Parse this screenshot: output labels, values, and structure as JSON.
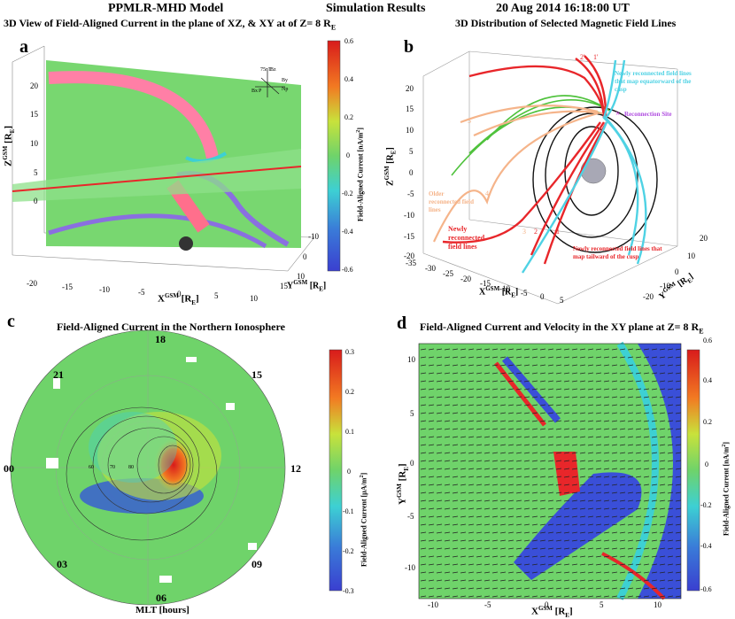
{
  "header": {
    "left": "PPMLR-MHD Model",
    "center": "Simulation Results",
    "right": "20 Aug 2014  16:18:00 UT"
  },
  "panel_a": {
    "letter": "a",
    "title": "3D View of Field-Aligned Current in the plane of XZ, & XY at of Z= 8 R",
    "title_sub": "E",
    "zlabel": "Z",
    "zlabel_sup": "GSM",
    "zlabel_unit": "[R",
    "zlabel_unit_sub": "E",
    "zlabel_close": "]",
    "xlabel": "X",
    "xlabel_sup": "GSM",
    "xlabel_unit": "[R",
    "xlabel_unit_sub": "E",
    "xlabel_close": "]",
    "ylabel": "Y",
    "ylabel_sup": "GSM",
    "ylabel_unit": "[R",
    "ylabel_unit_sub": "E",
    "ylabel_close": "]",
    "zticks": [
      "20",
      "15",
      "10",
      "5",
      "0"
    ],
    "xticks": [
      "-20",
      "-15",
      "-10",
      "-5",
      "0",
      "5",
      "10",
      "15"
    ],
    "yticks": [
      "-10",
      "0",
      "10"
    ],
    "cbar_label": "Field-Aligned Current [nA/m",
    "cbar_label_sup": "2",
    "cbar_label_close": "]",
    "cbar_ticks": [
      "0.6",
      "0.4",
      "0.2",
      "0",
      "-0.2",
      "-0.4",
      "-0.6"
    ],
    "inset": {
      "bz": "Bz",
      "by": "By",
      "bx": "Bx",
      "t": "75nT",
      "p": "P",
      "n": "Np"
    }
  },
  "panel_b": {
    "letter": "b",
    "title": "3D Distribution of Selected Magnetic Field Lines",
    "zlabel": "Z",
    "zlabel_sup": "GSM",
    "zlabel_unit": "[R",
    "zlabel_unit_sub": "E",
    "zlabel_close": "]",
    "xlabel": "X",
    "xlabel_sup": "GSM",
    "xlabel_unit": "[R",
    "xlabel_unit_sub": "E",
    "xlabel_close": "]",
    "ylabel": "Y",
    "ylabel_sup": "GSM",
    "ylabel_unit": "[R",
    "ylabel_unit_sub": "E",
    "ylabel_close": "]",
    "zticks": [
      "20",
      "15",
      "10",
      "5",
      "0",
      "-5",
      "-10",
      "-15",
      "-20"
    ],
    "xticks": [
      "-35",
      "-30",
      "-25",
      "-20",
      "-15",
      "-10",
      "-5",
      "0",
      "5"
    ],
    "yticks": [
      "20",
      "10",
      "0",
      "-10",
      "-20"
    ],
    "ann_cyan": "Newly reconnected field lines that map equatorward of the cusp",
    "ann_reconn": "Reconnection Site",
    "ann_older": "Older reconnected field lines",
    "ann_newly": "Newly reconnected field lines",
    "ann_tail": "Newly reconnected field lines that map tailward of the cusp",
    "nums": {
      "one": "1",
      "two": "2",
      "three": "3",
      "four": "4",
      "five": "5",
      "one_p": "1'",
      "two_p": "2'"
    }
  },
  "panel_c": {
    "letter": "c",
    "title": "Field-Aligned Current in the Northern Ionosphere",
    "mlt": {
      "t18": "18",
      "t21": "21",
      "t15": "15",
      "t00": "00",
      "t12": "12",
      "t03": "03",
      "t09": "09",
      "t06": "06"
    },
    "xlabel": "MLT [hours]",
    "lat_labels": [
      "60",
      "70",
      "80"
    ],
    "cbar_label": "Field-Aligned Current [µA/m",
    "cbar_label_sup": "2",
    "cbar_label_close": "]",
    "cbar_ticks": [
      "0.3",
      "0.2",
      "0.1",
      "0",
      "-0.1",
      "-0.2",
      "-0.3"
    ]
  },
  "panel_d": {
    "letter": "d",
    "title": "Field-Aligned Current and Velocity in the XY plane at Z= 8 R",
    "title_sub": "E",
    "ylabel": "Y",
    "ylabel_sup": "GSM",
    "ylabel_unit": "[R",
    "ylabel_unit_sub": "E",
    "ylabel_close": "]",
    "xlabel": "X",
    "xlabel_sup": "GSM",
    "xlabel_unit": "[R",
    "xlabel_unit_sub": "E",
    "xlabel_close": "]",
    "yticks": [
      "10",
      "5",
      "0",
      "-5",
      "-10"
    ],
    "xticks": [
      "-10",
      "-5",
      "0",
      "5",
      "10"
    ],
    "cbar_label": "Field-Aligned Current [nA/m",
    "cbar_label_sup": "2",
    "cbar_label_close": "]",
    "cbar_ticks": [
      "0.6",
      "0.4",
      "0.2",
      "0",
      "-0.2",
      "-0.4",
      "-0.6"
    ]
  },
  "colors": {
    "background_field": "#6fd36a",
    "positive": "#e8262a",
    "negative": "#3a3fd0",
    "pink": "#ff7fa6"
  }
}
